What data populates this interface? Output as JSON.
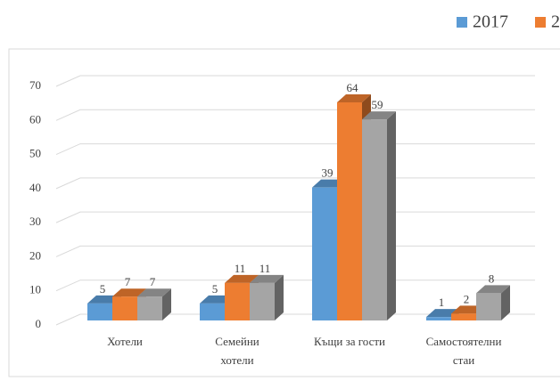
{
  "chart_data": {
    "type": "bar3d",
    "categories": [
      "Хотели",
      "Семейни\nхотели",
      "Къщи за гости",
      "Самостоятелни\nстаи"
    ],
    "series": [
      {
        "name": "2017",
        "color": "#5b9bd5",
        "values": [
          5,
          5,
          39,
          1
        ]
      },
      {
        "name": "2",
        "color": "#ed7d31",
        "values": [
          7,
          11,
          64,
          2
        ]
      },
      {
        "color": "#a5a5a5",
        "values": [
          7,
          11,
          59,
          8
        ]
      }
    ],
    "ylim": [
      0,
      70
    ],
    "yticks": [
      0,
      10,
      20,
      30,
      40,
      50,
      60,
      70
    ],
    "grid": true
  }
}
